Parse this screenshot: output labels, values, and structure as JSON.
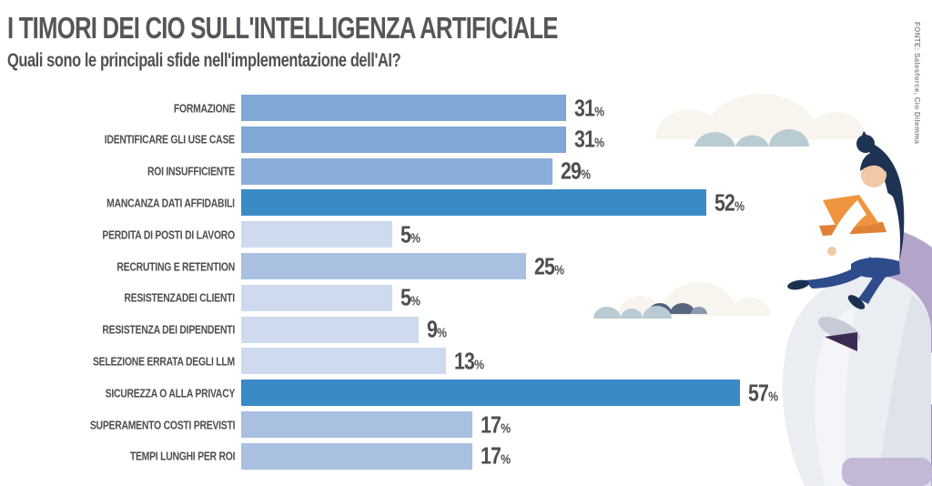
{
  "header": {
    "title": "I TIMORI DEI CIO SULL'INTELLIGENZA ARTIFICIALE",
    "subtitle": "Quali sono le principali sfide nell'implementazione dell'AI?"
  },
  "source_note": "FONTE: Salesforce, Cio Dilemma",
  "chart_data": {
    "type": "bar",
    "orientation": "horizontal",
    "value_unit": "%",
    "xlim": [
      0,
      60
    ],
    "grid": false,
    "legend": "none",
    "categories": [
      "FORMAZIONE",
      "IDENTIFICARE GLI USE CASE",
      "ROI INSUFFICIENTE",
      "MANCANZA DATI AFFIDABILI",
      "PERDITA DI POSTI DI LAVORO",
      "RECRUTING E RETENTION",
      "RESISTENZADEI CLIENTI",
      "RESISTENZA DEI DIPENDENTI",
      "SELEZIONE ERRATA DEGLI LLM",
      "SICUREZZA O ALLA PRIVACY",
      "SUPERAMENTO COSTI PREVISTI",
      "TEMPI LUNGHI PER ROI"
    ],
    "values": [
      31,
      31,
      29,
      52,
      5,
      25,
      5,
      9,
      13,
      57,
      17,
      17
    ],
    "bar_colors": [
      "#7FA8D6",
      "#7FA8D6",
      "#8AAEDA",
      "#3A8AC6",
      "#CEDBEE",
      "#A9C0E1",
      "#CEDBEE",
      "#CEDBEE",
      "#CEDBEE",
      "#3A8AC6",
      "#A9C0E1",
      "#A9C0E1"
    ]
  },
  "colors": {
    "background": "#FFFFFF",
    "title_text": "#55565A",
    "label_text": "#4D4E50",
    "accent_dark_bar": "#3A8AC6",
    "source_text": "#8A8C8E",
    "cloud_cream": "#F8F4EE",
    "cloud_bluegray": "#B9CBD3",
    "cloud_slate": "#4F5E7D",
    "robot_head": "#EAEDF2",
    "lavender_panel": "#B2A5C9",
    "laptop_orange": "#F0953F",
    "figure_navy": "#1E3354",
    "figure_blue": "#2E4C8C",
    "skin": "#F1C9A6"
  }
}
